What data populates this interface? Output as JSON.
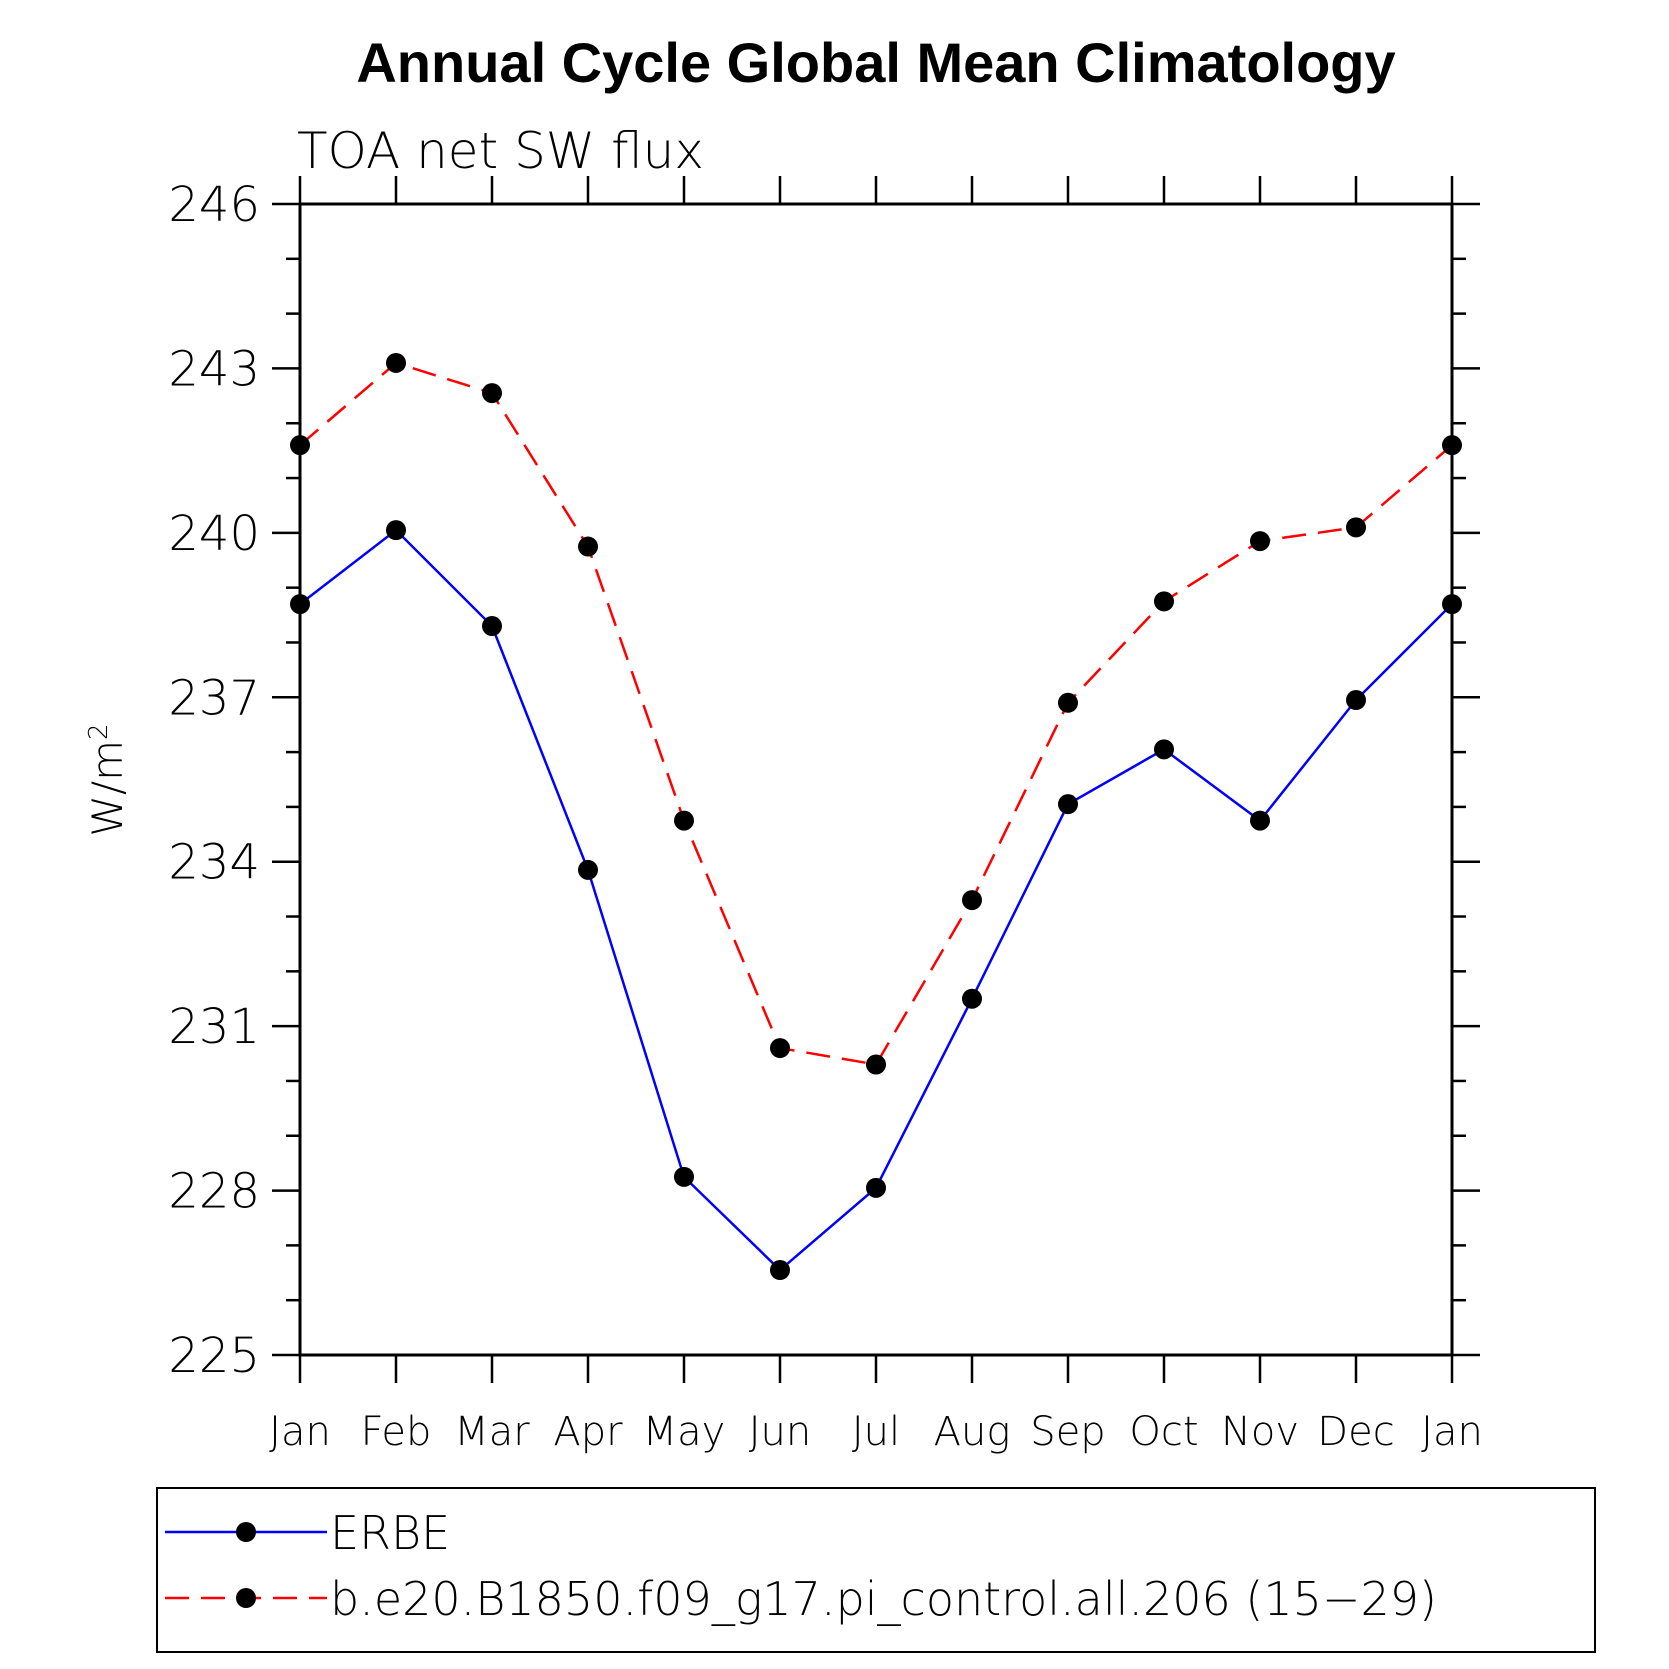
{
  "chart_data": {
    "type": "line",
    "title": "Annual Cycle Global Mean Climatology",
    "subtitle": "TOA net SW flux",
    "ylabel": "W/m",
    "ylabel_superscript": "2",
    "xlabel": "",
    "categories": [
      "Jan",
      "Feb",
      "Mar",
      "Apr",
      "May",
      "Jun",
      "Jul",
      "Aug",
      "Sep",
      "Oct",
      "Nov",
      "Dec",
      "Jan"
    ],
    "ylim": [
      225,
      246
    ],
    "yticks": [
      225,
      228,
      231,
      234,
      237,
      240,
      243,
      246
    ],
    "ytick_labels": [
      "225",
      "228",
      "231",
      "234",
      "237",
      "240",
      "243",
      "246"
    ],
    "y_minor_step": 1,
    "grid": false,
    "series": [
      {
        "name": "ERBE",
        "color": "#0000ff",
        "line_style": "solid",
        "marker": "filled-circle",
        "values": [
          238.7,
          240.05,
          238.3,
          233.85,
          228.25,
          226.55,
          228.05,
          231.5,
          235.05,
          236.05,
          234.75,
          236.95,
          238.7
        ]
      },
      {
        "name": "b.e20.B1850.f09_g17.pi_control.all.206 (15−29)",
        "color": "#ff0000",
        "line_style": "dashed",
        "marker": "filled-circle",
        "values": [
          241.6,
          243.1,
          242.55,
          239.75,
          234.75,
          230.6,
          230.3,
          233.3,
          236.9,
          238.75,
          239.85,
          240.1,
          241.6
        ]
      }
    ],
    "legend_position": "bottom"
  }
}
